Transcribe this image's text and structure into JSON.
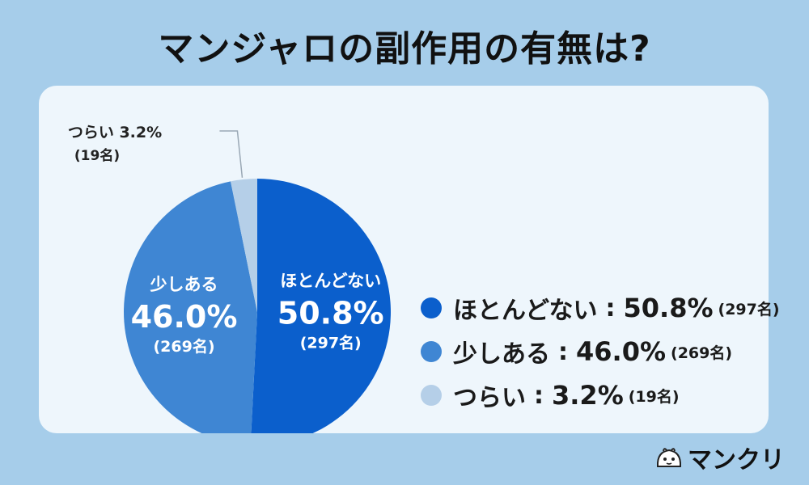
{
  "title": "マンジャロの副作用の有無は?",
  "chart_data": {
    "type": "pie",
    "slices": [
      {
        "label": "ほとんどない",
        "value": 50.8,
        "pct_text": "50.8%",
        "count_text": "(297名)",
        "color": "#0b5fcc"
      },
      {
        "label": "少しある",
        "value": 46.0,
        "pct_text": "46.0%",
        "count_text": "(269名)",
        "color": "#3f86d3"
      },
      {
        "label": "つらい",
        "value": 3.2,
        "pct_text": "3.2%",
        "count_text": "(19名)",
        "color": "#b5cfe8"
      }
    ],
    "callout": {
      "label_text": "つらい 3.2%",
      "count_text": "(19名)"
    },
    "legend_position": "right"
  },
  "legend": {
    "separator": ":"
  },
  "brand": {
    "name": "マンクリ",
    "icon": "mascot-logo-icon"
  }
}
